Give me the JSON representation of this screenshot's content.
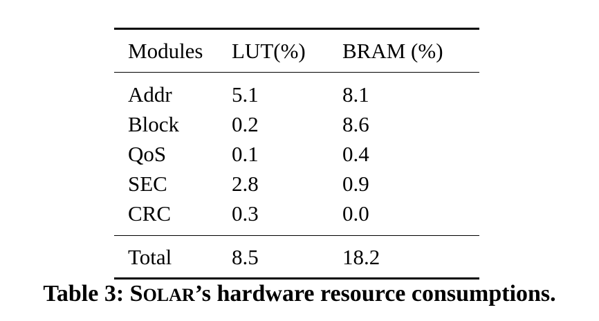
{
  "table": {
    "headers": [
      "Modules",
      "LUT(%)",
      "BRAM (%)"
    ],
    "rows": [
      [
        "Addr",
        "5.1",
        "8.1"
      ],
      [
        "Block",
        "0.2",
        "8.6"
      ],
      [
        "QoS",
        "0.1",
        "0.4"
      ],
      [
        "SEC",
        "2.8",
        "0.9"
      ],
      [
        "CRC",
        "0.3",
        "0.0"
      ]
    ],
    "total": [
      "Total",
      "8.5",
      "18.2"
    ]
  },
  "caption": {
    "prefix": "Table 3: ",
    "name_initial_s": "S",
    "name_small": "OLAR",
    "suffix": "’s hardware resource consumptions."
  }
}
